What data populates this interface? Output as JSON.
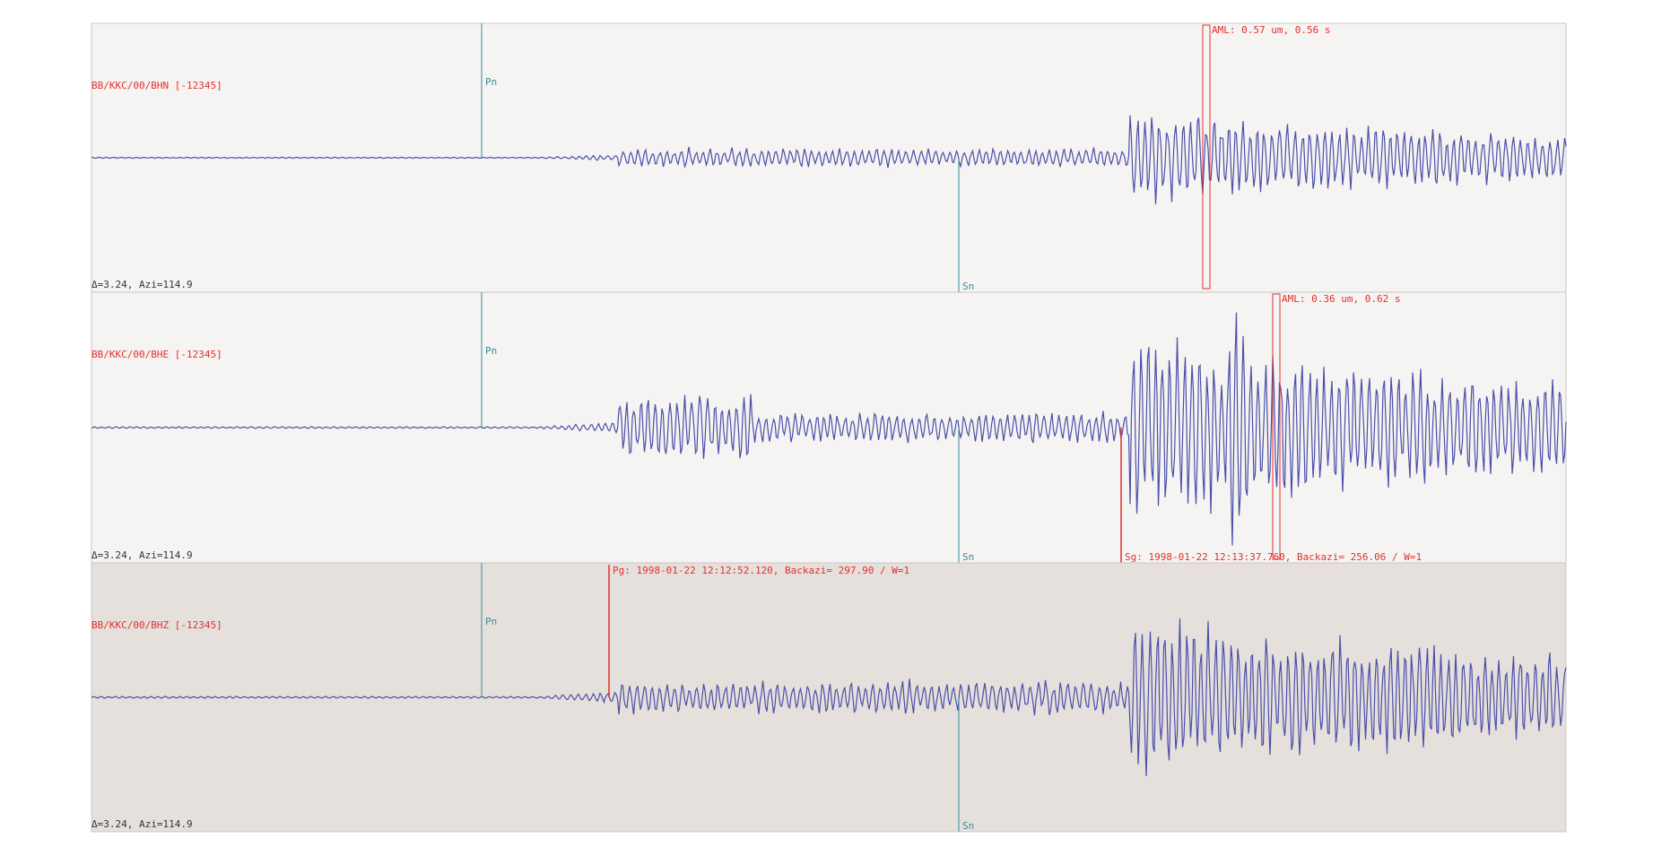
{
  "panels": [
    {
      "channel": "BB/KKC/00/BHN [-12345]",
      "info": "Δ=3.24, Azi=114.9",
      "phase_p": "Pn",
      "phase_s": "Sn",
      "amplitude": "AML: 0.57 um, 0.56 s"
    },
    {
      "channel": "BB/KKC/00/BHE [-12345]",
      "info": "Δ=3.24, Azi=114.9",
      "phase_p": "Pn",
      "phase_s": "Sn",
      "amplitude": "AML: 0.36 um, 0.62 s",
      "pick": "Sg: 1998-01-22 12:13:37.760, Backazi= 256.06 / W=1"
    },
    {
      "channel": "BB/KKC/00/BHZ [-12345]",
      "info": "Δ=3.24, Azi=114.9",
      "phase_p": "Pn",
      "phase_s": "Sn",
      "pick": "Pg: 1998-01-22 12:12:52.120, Backazi= 297.90 / W=1"
    }
  ]
}
